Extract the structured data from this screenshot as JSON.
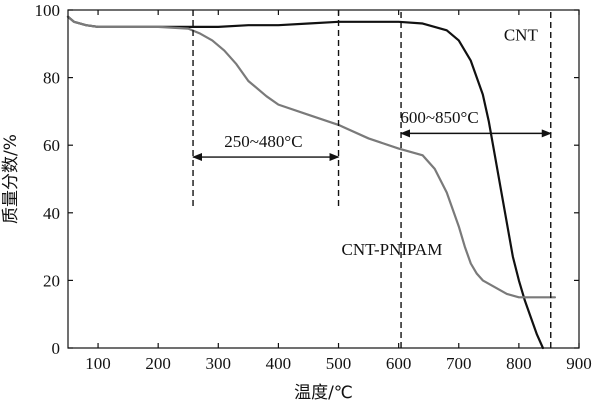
{
  "chart_data": {
    "type": "line",
    "title": "",
    "xlabel": "温度/℃",
    "ylabel": "质量分数/%",
    "xlim": [
      50,
      900
    ],
    "ylim": [
      0,
      100
    ],
    "xticks": [
      100,
      200,
      300,
      400,
      500,
      600,
      700,
      800,
      900
    ],
    "yticks": [
      0,
      20,
      40,
      60,
      80,
      100
    ],
    "grid": false,
    "series": [
      {
        "name": "CNT",
        "color": "#111111",
        "x": [
          50,
          60,
          80,
          100,
          150,
          200,
          250,
          300,
          350,
          400,
          450,
          500,
          550,
          600,
          640,
          680,
          700,
          720,
          740,
          750,
          760,
          770,
          780,
          790,
          800,
          810,
          820,
          830,
          840
        ],
        "y": [
          98,
          96.5,
          95.5,
          95,
          95,
          95,
          95,
          95,
          95.5,
          95.5,
          96,
          96.5,
          96.5,
          96.5,
          96,
          94,
          91,
          85,
          75,
          67,
          57,
          47,
          37,
          27,
          20,
          14,
          9,
          4,
          0
        ]
      },
      {
        "name": "CNT-PNIPAM",
        "color": "#7a7a7a",
        "x": [
          50,
          60,
          80,
          100,
          150,
          200,
          250,
          270,
          290,
          310,
          330,
          350,
          380,
          400,
          450,
          500,
          550,
          600,
          640,
          660,
          680,
          700,
          710,
          720,
          730,
          740,
          760,
          780,
          800,
          820,
          840,
          860
        ],
        "y": [
          98,
          96.5,
          95.5,
          95,
          95,
          95,
          94.5,
          93,
          91,
          88,
          84,
          79,
          74.5,
          72,
          69,
          66,
          62,
          59,
          57,
          53,
          46,
          36,
          30,
          25,
          22,
          20,
          18,
          16,
          15,
          15,
          15,
          15
        ]
      }
    ],
    "series_labels": [
      {
        "series": "CNT",
        "text": "CNT",
        "x": 775,
        "y": 91
      },
      {
        "series": "CNT-PNIPAM",
        "text": "CNT-PNIPAM",
        "x": 505,
        "y": 27.5
      }
    ],
    "vlines": [
      {
        "x": 258,
        "y_from": 42,
        "y_to": 100
      },
      {
        "x": 500,
        "y_from": 42,
        "y_to": 100
      },
      {
        "x": 604,
        "y_from": 0,
        "y_to": 100
      },
      {
        "x": 853,
        "y_from": 0,
        "y_to": 100
      }
    ],
    "annotations": [
      {
        "text": "250~480°C",
        "x_from": 258,
        "x_to": 500,
        "y": 56.5,
        "text_x": 375,
        "text_y": 59.5
      },
      {
        "text": "600~850°C",
        "x_from": 604,
        "x_to": 853,
        "y": 63.5,
        "text_x": 668,
        "text_y": 66.5
      }
    ]
  }
}
